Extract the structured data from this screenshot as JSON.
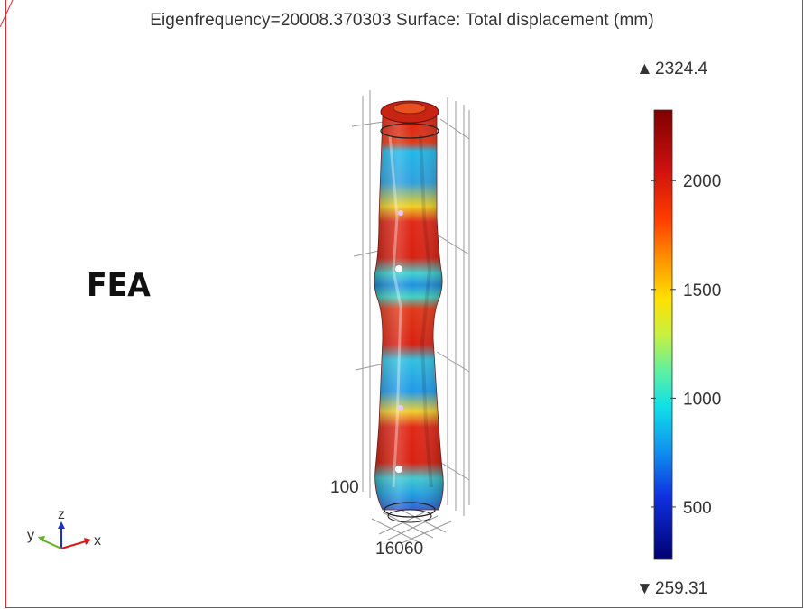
{
  "plot": {
    "title": "Eigenfrequency=20008.370303   Surface: Total displacement (mm)",
    "annotation": "FEA"
  },
  "colorbar": {
    "max_label": "2324.4",
    "min_label": "259.31",
    "ticks": [
      "2000",
      "1500",
      "1000",
      "500"
    ],
    "tick_values": [
      2000,
      1500,
      1000,
      500
    ],
    "range": [
      259.31,
      2324.4
    ],
    "max_marker": "▲",
    "min_marker": "▼"
  },
  "axes": {
    "labels": [
      "100",
      "160",
      "60"
    ],
    "triad": {
      "x": "x",
      "y": "y",
      "z": "z"
    }
  },
  "colors": {
    "frame": "#e4282c",
    "high": "#c81414",
    "low": "#0a0a8c"
  }
}
